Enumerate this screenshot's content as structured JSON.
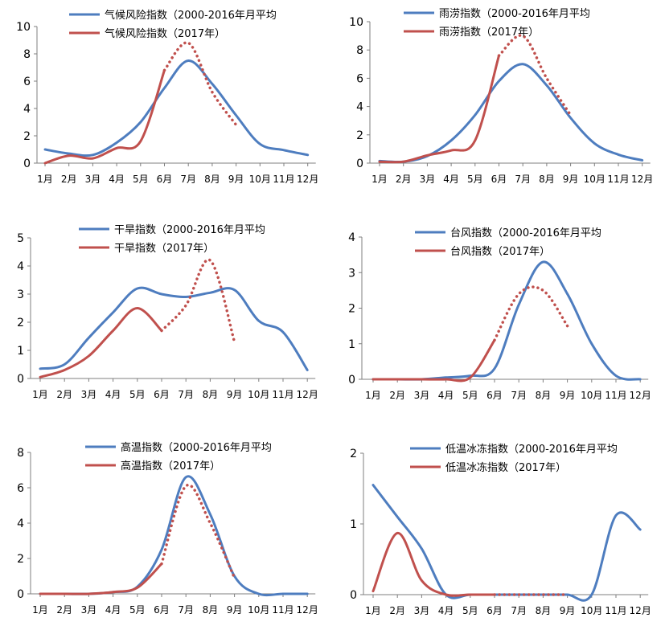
{
  "colors": {
    "avg": "#4E7DBF",
    "y2017": "#C0504D"
  },
  "chart_data": [
    {
      "type": "line",
      "x": [
        "1月",
        "2月",
        "3月",
        "4月",
        "5月",
        "6月",
        "7月",
        "8月",
        "9月",
        "10月",
        "11月",
        "12月"
      ],
      "ylim": [
        0,
        10
      ],
      "yticks": [
        "0",
        "2",
        "4",
        "6",
        "8",
        "10"
      ],
      "legend": "top-right",
      "series": [
        {
          "name": "气候风险指数（2000-2016年月平均",
          "values": [
            1.0,
            0.7,
            0.6,
            1.5,
            3.0,
            5.5,
            7.5,
            5.8,
            3.5,
            1.4,
            0.95,
            0.6
          ]
        },
        {
          "name": "气候风险指数（2017年）",
          "values": [
            0.0,
            0.55,
            0.35,
            1.1,
            1.6,
            6.8,
            null,
            null,
            null,
            null,
            null,
            null
          ]
        },
        {
          "name": "",
          "style": "dotted",
          "values": [
            null,
            null,
            null,
            null,
            null,
            6.8,
            8.8,
            5.2,
            2.8,
            null,
            null,
            null
          ]
        }
      ]
    },
    {
      "type": "line",
      "x": [
        "1月",
        "2月",
        "3月",
        "4月",
        "5月",
        "6月",
        "7月",
        "8月",
        "9月",
        "10月",
        "11月",
        "12月"
      ],
      "ylim": [
        0,
        10
      ],
      "yticks": [
        "0",
        "2",
        "4",
        "6",
        "8",
        "10"
      ],
      "legend": "top-right",
      "series": [
        {
          "name": "雨涝指数（2000-2016年月平均",
          "values": [
            0.15,
            0.1,
            0.5,
            1.6,
            3.4,
            5.8,
            7.0,
            5.5,
            3.2,
            1.4,
            0.6,
            0.2
          ]
        },
        {
          "name": "雨涝指数（2017年）",
          "values": [
            0.1,
            0.1,
            0.55,
            0.9,
            1.6,
            7.6,
            null,
            null,
            null,
            null,
            null,
            null
          ]
        },
        {
          "name": "",
          "style": "dotted",
          "values": [
            null,
            null,
            null,
            null,
            null,
            7.6,
            9.0,
            6.0,
            3.4,
            null,
            null,
            null
          ]
        }
      ]
    },
    {
      "type": "line",
      "x": [
        "1月",
        "2月",
        "3月",
        "4月",
        "5月",
        "6月",
        "7月",
        "8月",
        "9月",
        "10月",
        "11月",
        "12月"
      ],
      "ylim": [
        0,
        5
      ],
      "yticks": [
        "0",
        "1",
        "2",
        "3",
        "4",
        "5"
      ],
      "legend": "top-right",
      "series": [
        {
          "name": "干旱指数（2000-2016年月平均",
          "values": [
            0.35,
            0.5,
            1.45,
            2.35,
            3.2,
            3.0,
            2.9,
            3.05,
            3.15,
            2.05,
            1.65,
            0.3
          ]
        },
        {
          "name": "干旱指数（2017年）",
          "values": [
            0.05,
            0.3,
            0.8,
            1.7,
            2.5,
            1.7,
            null,
            null,
            null,
            null,
            null,
            null
          ]
        },
        {
          "name": "",
          "style": "dotted",
          "values": [
            null,
            null,
            null,
            null,
            null,
            1.7,
            2.6,
            4.2,
            1.3,
            null,
            null,
            null
          ]
        }
      ]
    },
    {
      "type": "line",
      "x": [
        "1月",
        "2月",
        "3月",
        "4月",
        "5月",
        "6月",
        "7月",
        "8月",
        "9月",
        "10月",
        "11月",
        "12月"
      ],
      "ylim": [
        0,
        4
      ],
      "yticks": [
        "0",
        "1",
        "2",
        "3",
        "4"
      ],
      "legend": "top-right",
      "series": [
        {
          "name": "台风指数（2000-2016年月平均",
          "values": [
            0.0,
            0.0,
            0.0,
            0.05,
            0.1,
            0.3,
            2.1,
            3.3,
            2.4,
            1.0,
            0.1,
            0.0
          ]
        },
        {
          "name": "台风指数（2017年）",
          "values": [
            0.0,
            0.0,
            0.0,
            0.0,
            0.05,
            1.1,
            null,
            null,
            null,
            null,
            null,
            null
          ]
        },
        {
          "name": "",
          "style": "dotted",
          "values": [
            null,
            null,
            null,
            null,
            null,
            1.1,
            2.4,
            2.5,
            1.5,
            null,
            null,
            null
          ]
        }
      ]
    },
    {
      "type": "line",
      "x": [
        "1月",
        "2月",
        "3月",
        "4月",
        "5月",
        "6月",
        "7月",
        "8月",
        "9月",
        "10月",
        "11月",
        "12月"
      ],
      "ylim": [
        0,
        8
      ],
      "yticks": [
        "0",
        "2",
        "4",
        "6",
        "8"
      ],
      "legend": "top-right",
      "series": [
        {
          "name": "高温指数（2000-2016年月平均",
          "values": [
            0.0,
            0.0,
            0.0,
            0.1,
            0.4,
            2.5,
            6.6,
            4.5,
            1.0,
            0.0,
            0.0,
            0.0
          ]
        },
        {
          "name": "高温指数（2017年）",
          "values": [
            0.0,
            0.0,
            0.0,
            0.1,
            0.35,
            1.7,
            null,
            null,
            null,
            null,
            null,
            null
          ]
        },
        {
          "name": "",
          "style": "dotted",
          "values": [
            null,
            null,
            null,
            null,
            null,
            1.7,
            6.1,
            4.0,
            0.9,
            null,
            null,
            null
          ]
        }
      ]
    },
    {
      "type": "line",
      "x": [
        "1月",
        "2月",
        "3月",
        "4月",
        "5月",
        "6月",
        "7月",
        "8月",
        "9月",
        "10月",
        "11月",
        "12月"
      ],
      "ylim": [
        0,
        2
      ],
      "yticks": [
        "0",
        "1",
        "2"
      ],
      "legend": "top-right",
      "series": [
        {
          "name": "低温冰冻指数（2000-2016年月平均",
          "values": [
            1.55,
            1.1,
            0.65,
            0.0,
            0.0,
            0.0,
            0.0,
            0.0,
            0.0,
            0.0,
            1.12,
            0.92
          ]
        },
        {
          "name": "低温冰冻指数（2017年）",
          "values": [
            0.05,
            0.87,
            0.2,
            0.0,
            0.0,
            0.0,
            null,
            null,
            null,
            null,
            null,
            null
          ]
        },
        {
          "name": "",
          "style": "dotted",
          "values": [
            null,
            null,
            null,
            null,
            null,
            0.0,
            0.0,
            0.0,
            0.0,
            null,
            null,
            null
          ]
        }
      ]
    }
  ]
}
